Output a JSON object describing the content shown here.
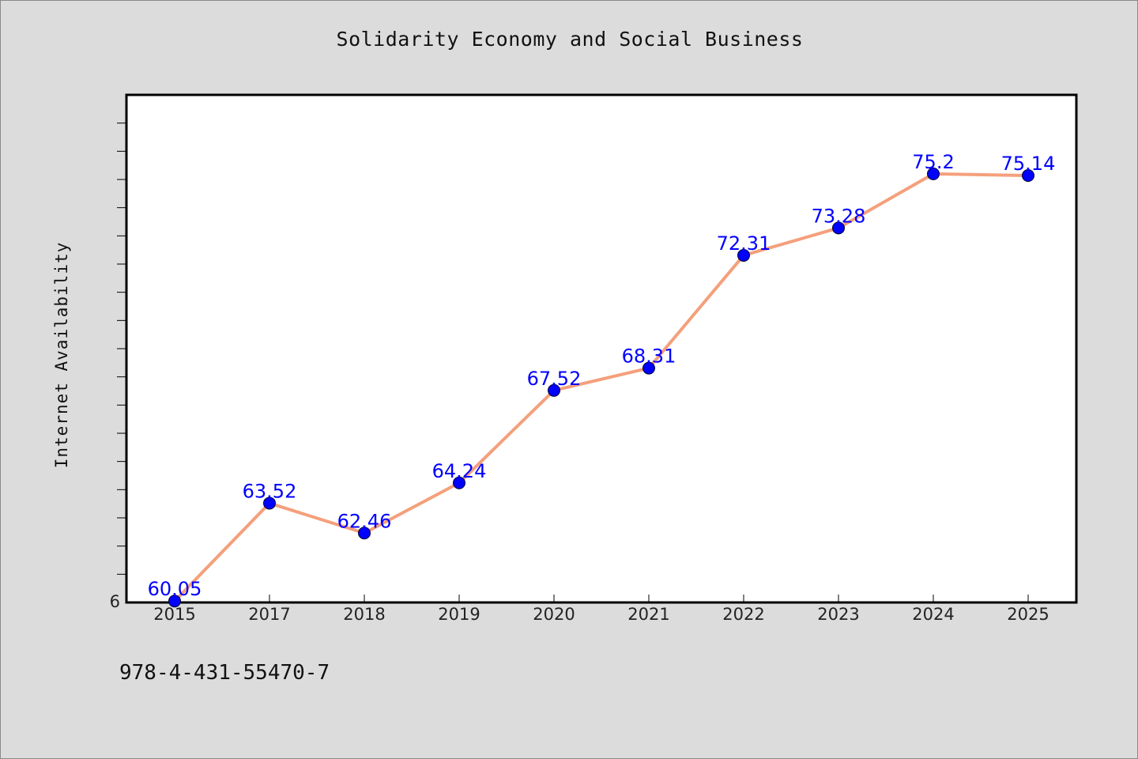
{
  "chart_data": {
    "type": "line",
    "title": "Solidarity Economy and Social Business",
    "xlabel": "",
    "ylabel": "Internet Availability",
    "categories": [
      "2015",
      "2017",
      "2018",
      "2019",
      "2020",
      "2021",
      "2022",
      "2023",
      "2024",
      "2025"
    ],
    "series": [
      {
        "values": [
          60.05,
          63.52,
          62.46,
          64.24,
          67.52,
          68.31,
          72.31,
          73.28,
          75.2,
          75.14
        ],
        "line_color": "#f4a07c",
        "marker_color": "#0000ff"
      }
    ],
    "data_labels": [
      "60.05",
      "63.52",
      "62.46",
      "64.24",
      "67.52",
      "68.31",
      "72.31",
      "73.28",
      "75.2",
      "75.14"
    ],
    "ylim": [
      60,
      78
    ],
    "y_tick_labels": [
      "6"
    ],
    "grid": false,
    "legend": "none"
  },
  "footer": {
    "code": "978-4-431-55470-7"
  },
  "colors": {
    "background": "#dcdcdc",
    "plot_background": "#ffffff",
    "line": "#f4a07c",
    "marker": "#0000ff",
    "data_label": "#0000ff"
  }
}
